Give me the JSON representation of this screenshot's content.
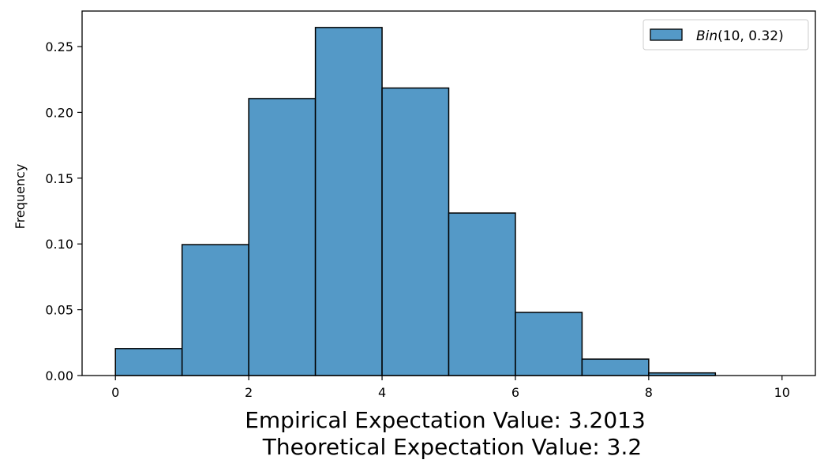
{
  "chart_data": {
    "type": "bar",
    "bin_edges": [
      0,
      1,
      2,
      3,
      4,
      5,
      6,
      7,
      8,
      9,
      10
    ],
    "values": [
      0.0205,
      0.0995,
      0.2105,
      0.2645,
      0.2185,
      0.1235,
      0.048,
      0.0125,
      0.002,
      0.0
    ],
    "title": "",
    "ylabel": "Frequency",
    "xlabel_lines": [
      "Empirical Expectation Value: 3.2013",
      "Theoretical Expectation Value: 3.2"
    ],
    "xlim": [
      -0.5,
      10.5
    ],
    "ylim": [
      0,
      0.277
    ],
    "xticks": [
      0,
      2,
      4,
      6,
      8,
      10
    ],
    "xtick_labels": [
      "0",
      "2",
      "4",
      "6",
      "8",
      "10"
    ],
    "yticks": [
      0.0,
      0.05,
      0.1,
      0.15,
      0.2,
      0.25
    ],
    "ytick_labels": [
      "0.00",
      "0.05",
      "0.10",
      "0.15",
      "0.20",
      "0.25"
    ],
    "grid": false,
    "legend": {
      "position": "top-right",
      "entries": [
        {
          "name": "Bin(10, 0.32)",
          "parts": [
            "Bin",
            "(10, 0.32)"
          ]
        }
      ]
    },
    "colors": {
      "bar_fill": "#5499c7",
      "bar_edge": "#000000"
    }
  }
}
